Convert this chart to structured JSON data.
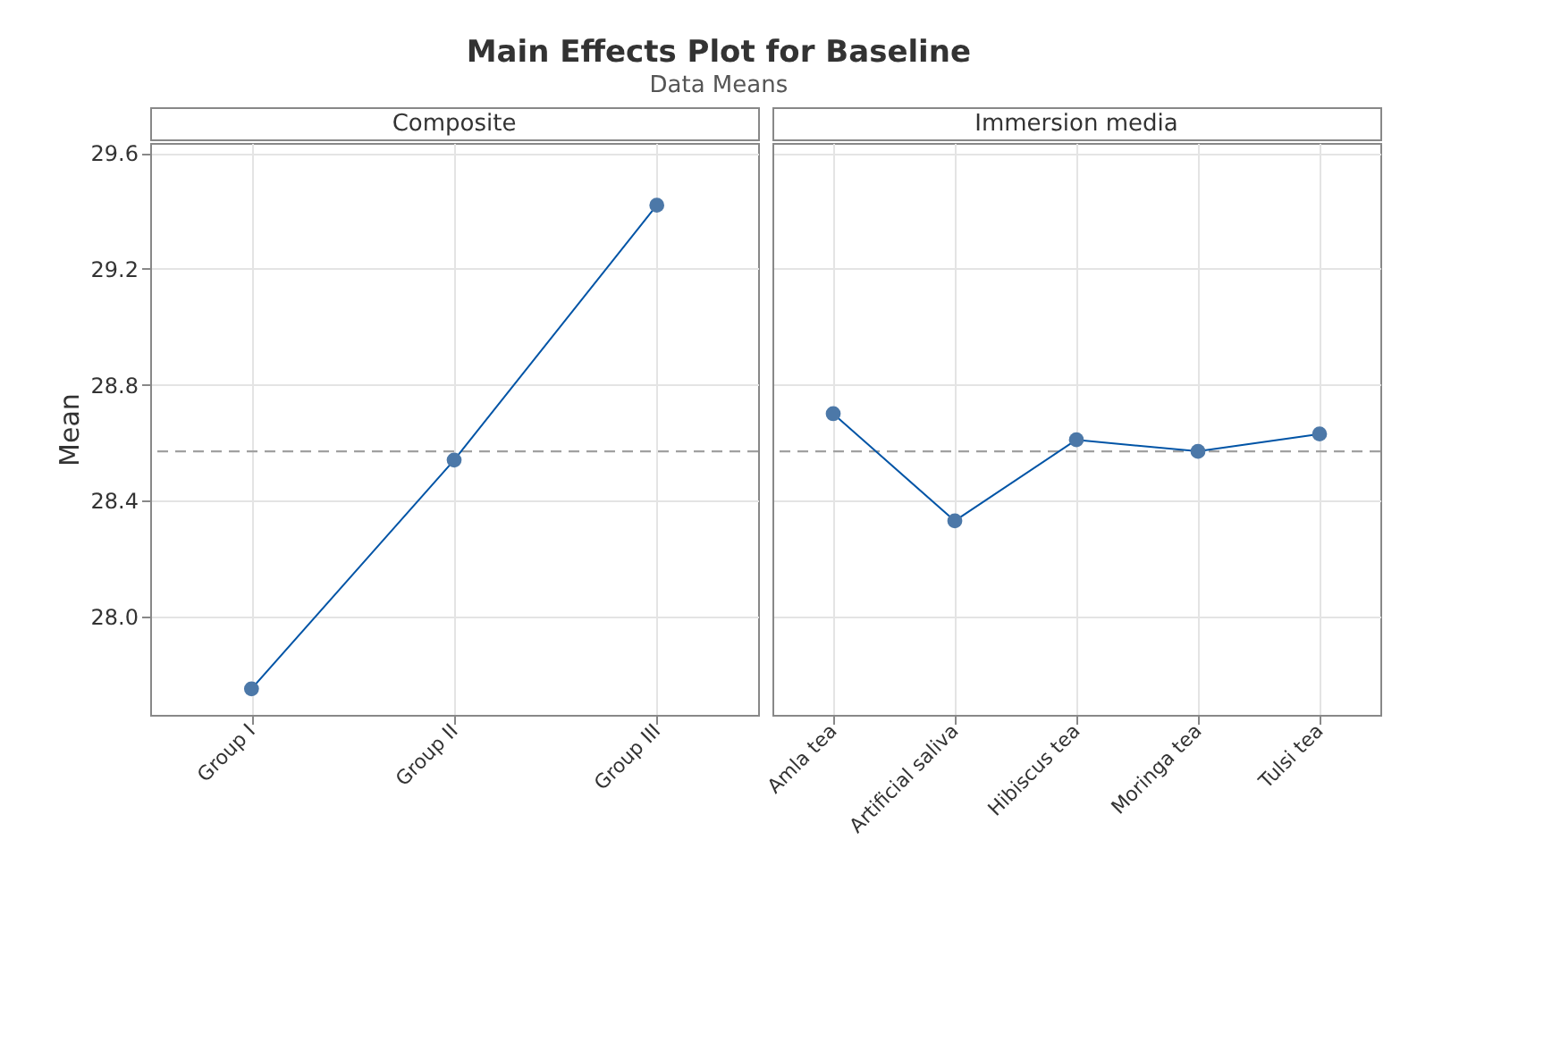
{
  "chart_data": [
    {
      "type": "line",
      "title": "Main Effects Plot for Baseline",
      "subtitle": "Data Means",
      "xlabel": "Composite",
      "ylabel": "Mean",
      "categories": [
        "Group I",
        "Group II",
        "Group III"
      ],
      "series": [
        {
          "color": "#0054a6",
          "values": [
            27.75,
            28.54,
            29.42
          ]
        }
      ],
      "ylim": [
        27.66,
        29.635
      ],
      "yticks": [
        {
          "value": 28.0,
          "label": "28.0"
        },
        {
          "value": 28.4,
          "label": "28.4"
        },
        {
          "value": 28.8,
          "label": "28.8"
        },
        {
          "value": 29.2,
          "label": "29.2"
        },
        {
          "value": 29.6,
          "label": "29.6"
        }
      ],
      "grid": true,
      "marker": "circle",
      "line_style": "solid",
      "ref_lines": [
        {
          "axis": "y",
          "value": 28.57,
          "color": "#a0a0a0",
          "line_style": "dashed"
        }
      ]
    },
    {
      "type": "line",
      "xlabel": "Immersion media",
      "categories": [
        "Amla tea",
        "Artificial saliva",
        "Hibiscus tea",
        "Moringa tea",
        "Tulsi tea"
      ],
      "series": [
        {
          "color": "#0054a6",
          "values": [
            28.7,
            28.33,
            28.61,
            28.57,
            28.63
          ]
        }
      ],
      "ylim": [
        27.66,
        29.635
      ],
      "yticks": [
        28.0,
        28.4,
        28.8,
        29.2,
        29.6
      ],
      "tick_labels": "x",
      "grid": true,
      "marker": "circle",
      "line_style": "solid",
      "ref_lines": [
        {
          "axis": "y",
          "value": 28.57,
          "color": "#a0a0a0",
          "line_style": "dashed"
        }
      ]
    }
  ]
}
